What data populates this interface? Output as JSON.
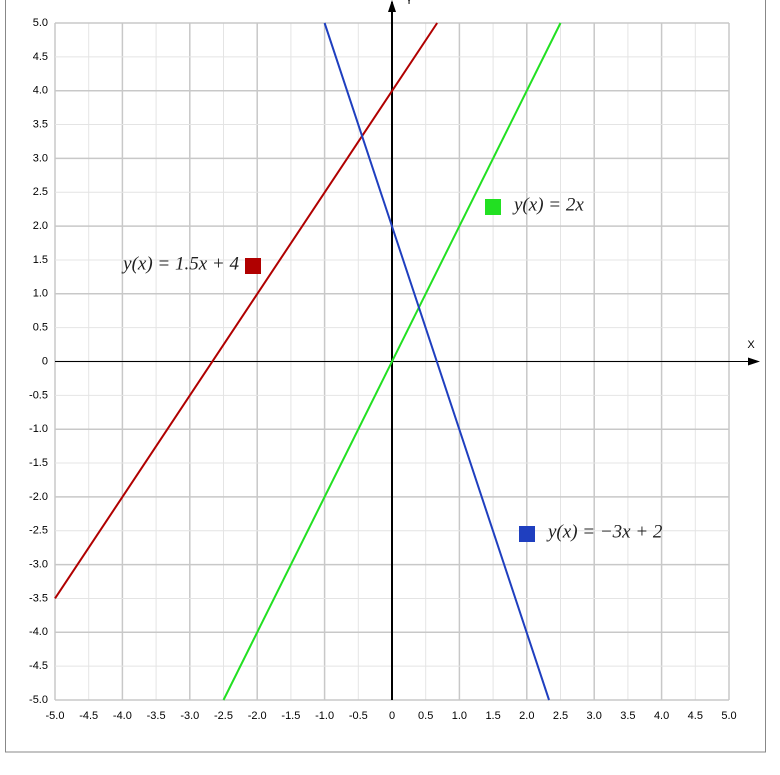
{
  "chart_data": {
    "type": "line",
    "x_label": "X",
    "y_label": "Y",
    "xlim": [
      -5,
      5
    ],
    "ylim": [
      -5,
      5
    ],
    "xticks": [
      {
        "value": -5,
        "label": "-5.0"
      },
      -4.5,
      {
        "value": -4,
        "label": "-4.0"
      },
      -3.5,
      {
        "value": -3,
        "label": "-3.0"
      },
      -2.5,
      {
        "value": -2,
        "label": "-2.0"
      },
      -1.5,
      {
        "value": -1,
        "label": "-1.0"
      },
      -0.5,
      0,
      0.5,
      {
        "value": 1,
        "label": "1.0"
      },
      1.5,
      {
        "value": 2,
        "label": "2.0"
      },
      2.5,
      {
        "value": 3,
        "label": "3.0"
      },
      3.5,
      {
        "value": 4,
        "label": "4.0"
      },
      4.5,
      {
        "value": 5,
        "label": "5.0"
      }
    ],
    "yticks": [
      {
        "value": -5,
        "label": "-5.0"
      },
      -4.5,
      {
        "value": -4,
        "label": "-4.0"
      },
      -3.5,
      {
        "value": -3,
        "label": "-3.0"
      },
      -2.5,
      {
        "value": -2,
        "label": "-2.0"
      },
      -1.5,
      {
        "value": -1,
        "label": "-1.0"
      },
      -0.5,
      0,
      0.5,
      {
        "value": 1,
        "label": "1.0"
      },
      1.5,
      {
        "value": 2,
        "label": "2.0"
      },
      2.5,
      {
        "value": 3,
        "label": "3.0"
      },
      3.5,
      {
        "value": 4,
        "label": "4.0"
      },
      4.5,
      {
        "value": 5,
        "label": "5.0"
      }
    ],
    "grid": true,
    "series": [
      {
        "name": "y(x) = 1.5x + 4",
        "color": "#b00000",
        "x": [
          -5,
          0.67
        ],
        "values": [
          -3.5,
          5
        ]
      },
      {
        "name": "y(x) = 2x",
        "color": "#22e022",
        "x": [
          -2.5,
          2.5
        ],
        "values": [
          -5,
          5
        ]
      },
      {
        "name": "y(x) = −3x + 2",
        "color": "#1f3fbf",
        "x": [
          -1,
          2.33
        ],
        "values": [
          5,
          -5
        ]
      }
    ]
  }
}
